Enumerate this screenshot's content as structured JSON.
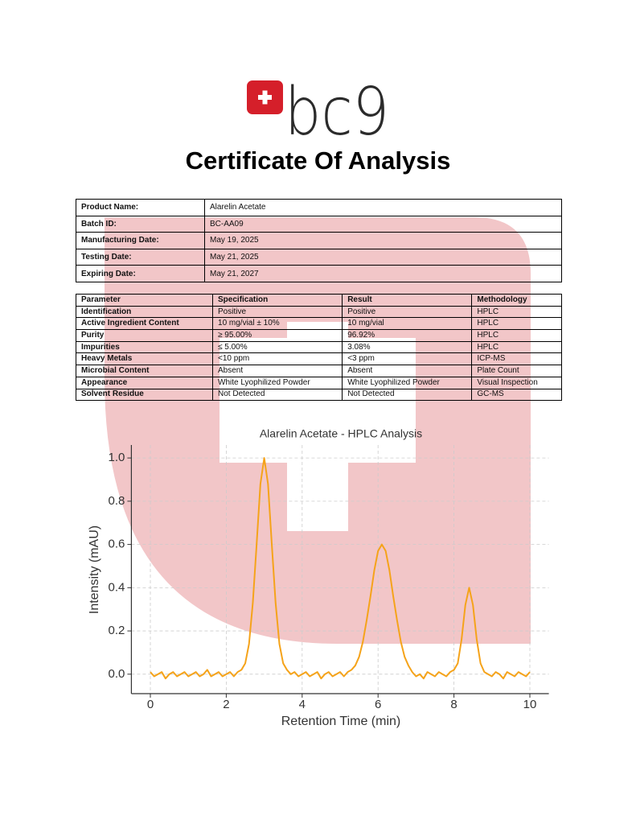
{
  "logo": {
    "text": "bc9"
  },
  "title": "Certificate Of Analysis",
  "product_table": {
    "rows": [
      [
        "Product Name:",
        "Alarelin Acetate"
      ],
      [
        "Batch ID:",
        "BC-AA09"
      ],
      [
        "Manufacturing Date:",
        "May 19, 2025"
      ],
      [
        "Testing Date:",
        "May 21, 2025"
      ],
      [
        "Expiring Date:",
        "May 21, 2027"
      ]
    ]
  },
  "test_table": {
    "header": [
      "Parameter",
      "Specification",
      "Result",
      "Methodology"
    ],
    "rows": [
      [
        "Identification",
        "Positive",
        "Positive",
        "HPLC"
      ],
      [
        "Active Ingredient Content",
        "10 mg/vial ± 10%",
        "10 mg/vial",
        "HPLC"
      ],
      [
        "Purity",
        "≥ 95.00%",
        "96.92%",
        "HPLC"
      ],
      [
        "Impurities",
        "≤ 5.00%",
        "3.08%",
        "HPLC"
      ],
      [
        "Heavy Metals",
        "<10 ppm",
        "<3 ppm",
        "ICP-MS"
      ],
      [
        "Microbial Content",
        "Absent",
        "Absent",
        "Plate Count"
      ],
      [
        "Appearance",
        "White Lyophilized Powder",
        "White Lyophilized Powder",
        "Visual Inspection"
      ],
      [
        "Solvent Residue",
        "Not Detected",
        "Not Detected",
        "GC-MS"
      ]
    ]
  },
  "chart_data": {
    "type": "line",
    "title": "Alarelin Acetate - HPLC Analysis",
    "x_label": "Retention Time (min)",
    "y_label": "Intensity (mAU)",
    "color": "#f5a31a",
    "grid": true,
    "xlim": [
      -0.5,
      10.5
    ],
    "ylim": [
      -0.09,
      1.06
    ],
    "xticks": [
      0,
      2,
      4,
      6,
      8,
      10
    ],
    "yticks": [
      {
        "value": 0,
        "label": "0.0"
      },
      {
        "value": 0.2,
        "label": "0.2"
      },
      {
        "value": 0.4,
        "label": "0.4"
      },
      {
        "value": 0.6,
        "label": "0.6"
      },
      {
        "value": 0.8,
        "label": "0.8"
      },
      {
        "value": 1,
        "label": "1.0"
      }
    ],
    "x": [
      0,
      0.1,
      0.2,
      0.3,
      0.4,
      0.5,
      0.6,
      0.7,
      0.8,
      0.9,
      1,
      1.1,
      1.2,
      1.3,
      1.4,
      1.5,
      1.6,
      1.7,
      1.8,
      1.9,
      2,
      2.1,
      2.2,
      2.3,
      2.4,
      2.5,
      2.6,
      2.7,
      2.8,
      2.9,
      3,
      3.1,
      3.2,
      3.3,
      3.4,
      3.5,
      3.6,
      3.7,
      3.8,
      3.9,
      4,
      4.1,
      4.2,
      4.3,
      4.4,
      4.5,
      4.6,
      4.7,
      4.8,
      4.9,
      5,
      5.1,
      5.2,
      5.3,
      5.4,
      5.5,
      5.6,
      5.7,
      5.8,
      5.9,
      6,
      6.1,
      6.2,
      6.3,
      6.4,
      6.5,
      6.6,
      6.7,
      6.8,
      6.9,
      7,
      7.1,
      7.2,
      7.3,
      7.4,
      7.5,
      7.6,
      7.7,
      7.8,
      7.9,
      8,
      8.1,
      8.2,
      8.3,
      8.4,
      8.5,
      8.6,
      8.7,
      8.8,
      8.9,
      9,
      9.1,
      9.2,
      9.3,
      9.4,
      9.5,
      9.6,
      9.7,
      9.8,
      9.9,
      10
    ],
    "values": [
      0.01,
      -0.01,
      0,
      0.01,
      -0.02,
      0,
      0.01,
      -0.01,
      0,
      0.01,
      -0.01,
      0,
      0.01,
      -0.01,
      0,
      0.02,
      -0.01,
      0,
      0.01,
      -0.01,
      0,
      0.01,
      -0.01,
      0.01,
      0.02,
      0.05,
      0.14,
      0.33,
      0.6,
      0.88,
      1,
      0.88,
      0.6,
      0.33,
      0.14,
      0.05,
      0.02,
      0,
      0.01,
      -0.01,
      0,
      0.01,
      -0.01,
      0,
      0.01,
      -0.02,
      0,
      0.01,
      -0.01,
      0,
      0.01,
      -0.01,
      0.01,
      0.02,
      0.04,
      0.08,
      0.15,
      0.25,
      0.36,
      0.48,
      0.57,
      0.6,
      0.57,
      0.48,
      0.36,
      0.25,
      0.15,
      0.08,
      0.04,
      0.01,
      -0.01,
      0,
      -0.02,
      0.01,
      0,
      -0.01,
      0.01,
      0,
      -0.01,
      0.01,
      0.02,
      0.05,
      0.16,
      0.32,
      0.4,
      0.32,
      0.16,
      0.05,
      0.01,
      0,
      -0.01,
      0.01,
      0,
      -0.02,
      0.01,
      0,
      -0.01,
      0.01,
      0,
      -0.01,
      0.01
    ]
  }
}
